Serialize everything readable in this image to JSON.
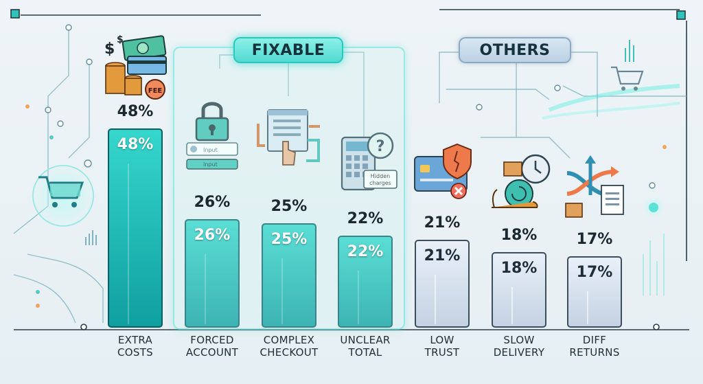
{
  "chart_data": {
    "type": "bar",
    "categories": [
      "EXTRA COSTS",
      "FORCED ACCOUNT",
      "COMPLEX CHECKOUT",
      "UNCLEAR TOTAL",
      "LOW TRUST",
      "SLOW DELIVERY",
      "DIFF RETURNS"
    ],
    "category_lines": [
      [
        "EXTRA",
        "COSTS"
      ],
      [
        "FORCED",
        "ACCOUNT"
      ],
      [
        "COMPLEX",
        "CHECKOUT"
      ],
      [
        "UNCLEAR",
        "TOTAL"
      ],
      [
        "LOW",
        "TRUST"
      ],
      [
        "SLOW",
        "DELIVERY"
      ],
      [
        "DIFF",
        "RETURNS"
      ]
    ],
    "values": [
      48,
      26,
      25,
      22,
      21,
      18,
      17
    ],
    "value_labels": [
      "48%",
      "26%",
      "25%",
      "22%",
      "21%",
      "18%",
      "17%"
    ],
    "groups": [
      {
        "name": "FIXABLE",
        "categories": [
          "EXTRA COSTS",
          "FORCED ACCOUNT",
          "COMPLEX CHECKOUT",
          "UNCLEAR TOTAL"
        ]
      },
      {
        "name": "OTHERS",
        "categories": [
          "LOW TRUST",
          "SLOW DELIVERY",
          "DIFF RETURNS"
        ]
      }
    ],
    "ylim": [
      0,
      55
    ],
    "grid": false,
    "title": "",
    "xlabel": "",
    "ylabel": ""
  },
  "labels": {
    "fixable": "FIXABLE",
    "others": "OTHERS"
  },
  "icon_text": {
    "input1": "Input",
    "input2": "Input",
    "hidden1": "Hidden",
    "hidden2": "charges",
    "fee": "FEE",
    "dollar": "$"
  },
  "colors": {
    "fixable_top": "#36d7cc",
    "fixable_bottom": "#0f9fa0",
    "others_top": "#e7eef7",
    "others_bottom": "#c5d3e4",
    "frame": "#2a3b47",
    "accent": "#3fe0d6"
  },
  "icons": [
    "money-fee-icon",
    "padlock-icon",
    "checkout-flow-icon",
    "calculator-question-icon",
    "credit-card-shield-icon",
    "snail-clock-icon",
    "return-arrows-icon",
    "shopping-cart-icon"
  ]
}
